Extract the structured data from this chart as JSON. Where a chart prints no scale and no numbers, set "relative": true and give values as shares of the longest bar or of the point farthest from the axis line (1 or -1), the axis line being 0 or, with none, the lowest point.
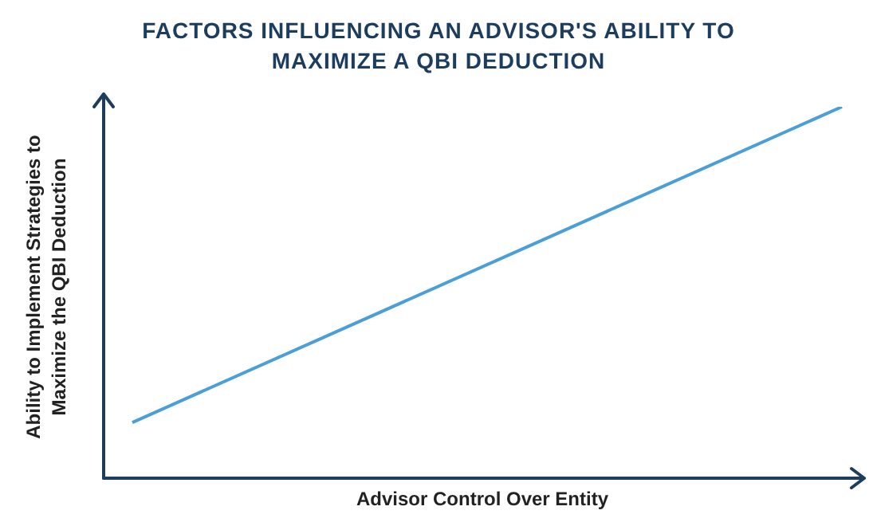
{
  "chart_data": {
    "type": "line",
    "title": "FACTORS INFLUENCING AN ADVISOR'S ABILITY TO MAXIMIZE A QBI DEDUCTION",
    "xlabel": "Advisor Control Over Entity",
    "ylabel": "Ability to Implement Strategies to Maximize the QBI Deduction",
    "categories": [
      null,
      null
    ],
    "series": [
      {
        "color": "#4a9fd8",
        "values": [
          0.15,
          1
        ]
      }
    ],
    "relative": true,
    "marker": "none",
    "legend": false
  }
}
